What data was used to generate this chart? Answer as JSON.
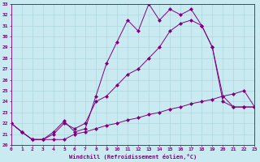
{
  "xlabel": "Windchill (Refroidissement éolien,°C)",
  "xlim": [
    0,
    23
  ],
  "ylim": [
    20,
    33
  ],
  "yticks": [
    20,
    21,
    22,
    23,
    24,
    25,
    26,
    27,
    28,
    29,
    30,
    31,
    32,
    33
  ],
  "xticks": [
    0,
    1,
    2,
    3,
    4,
    5,
    6,
    7,
    8,
    9,
    10,
    11,
    12,
    13,
    14,
    15,
    16,
    17,
    18,
    19,
    20,
    21,
    22,
    23
  ],
  "line_color": "#800080",
  "bg_color": "#c8eaf0",
  "grid_color": "#b0d8e0",
  "series": [
    {
      "x": [
        0,
        1,
        2,
        3,
        4,
        5,
        6,
        7,
        8,
        9,
        10,
        11,
        12,
        13,
        14,
        15,
        16,
        17,
        18,
        19,
        20,
        21,
        22,
        23
      ],
      "y": [
        22.0,
        21.2,
        20.5,
        20.5,
        20.5,
        20.5,
        21.0,
        21.2,
        21.5,
        21.8,
        22.0,
        22.3,
        22.5,
        22.8,
        23.0,
        23.3,
        23.5,
        23.8,
        24.0,
        24.2,
        24.5,
        24.7,
        25.0,
        23.5
      ]
    },
    {
      "x": [
        0,
        1,
        2,
        3,
        4,
        5,
        6,
        7,
        8,
        9,
        10,
        11,
        12,
        13,
        14,
        15,
        16,
        17,
        18,
        19,
        20,
        21,
        22,
        23
      ],
      "y": [
        22.0,
        21.2,
        20.5,
        20.5,
        21.0,
        22.0,
        21.5,
        22.0,
        24.0,
        24.5,
        25.5,
        26.5,
        27.0,
        28.0,
        29.0,
        30.5,
        31.2,
        31.5,
        31.0,
        29.0,
        24.0,
        23.5,
        23.5,
        23.5
      ]
    },
    {
      "x": [
        0,
        1,
        2,
        3,
        4,
        5,
        6,
        7,
        8,
        9,
        10,
        11,
        12,
        13,
        14,
        15,
        16,
        17,
        18,
        19,
        20,
        21,
        22,
        23
      ],
      "y": [
        22.0,
        21.2,
        20.5,
        20.5,
        21.2,
        22.2,
        21.2,
        21.5,
        24.5,
        27.5,
        29.5,
        31.5,
        30.5,
        33.0,
        31.5,
        32.5,
        32.0,
        32.5,
        31.0,
        29.0,
        24.5,
        23.5,
        23.5,
        23.5
      ]
    }
  ]
}
